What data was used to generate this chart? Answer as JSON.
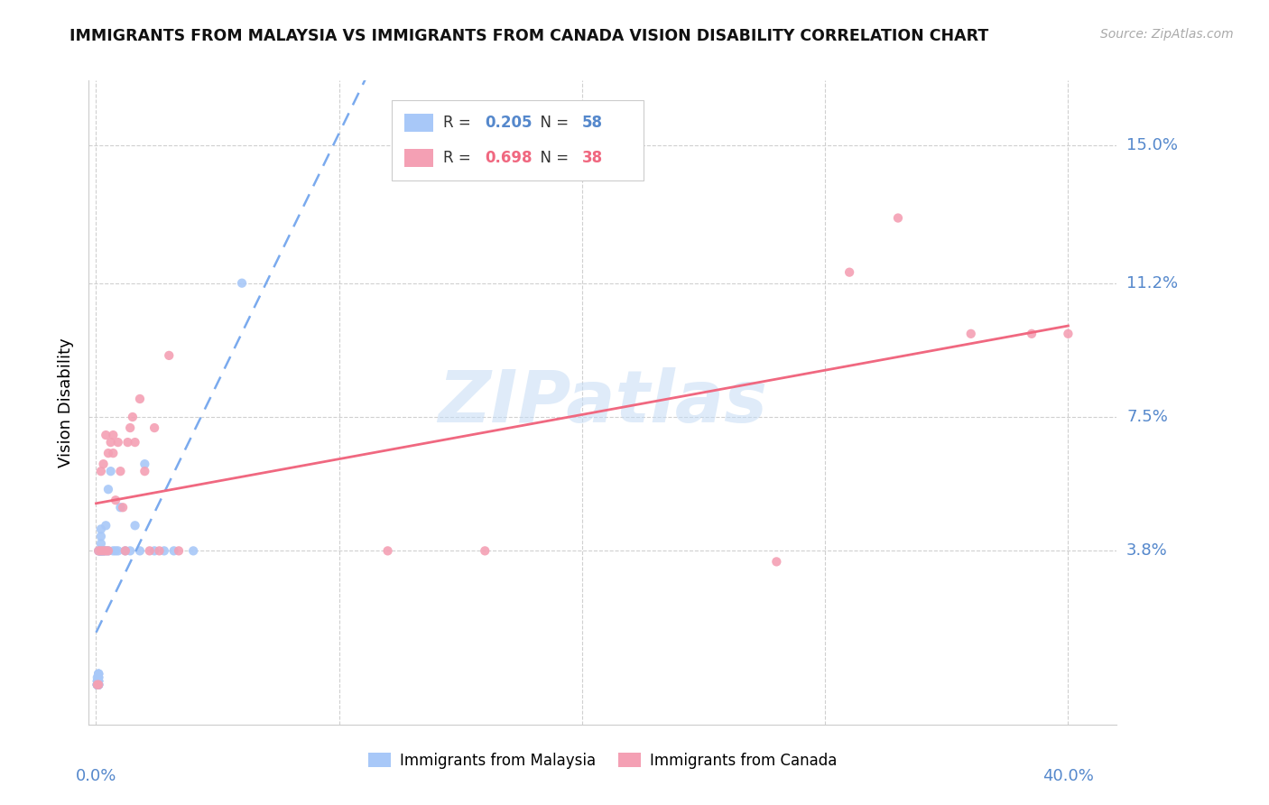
{
  "title": "IMMIGRANTS FROM MALAYSIA VS IMMIGRANTS FROM CANADA VISION DISABILITY CORRELATION CHART",
  "source": "Source: ZipAtlas.com",
  "ylabel": "Vision Disability",
  "ytick_labels": [
    "15.0%",
    "11.2%",
    "7.5%",
    "3.8%"
  ],
  "ytick_values": [
    0.15,
    0.112,
    0.075,
    0.038
  ],
  "xtick_labels": [
    "0.0%",
    "40.0%"
  ],
  "xtick_values": [
    0.0,
    0.4
  ],
  "xlim": [
    -0.003,
    0.42
  ],
  "ylim": [
    -0.01,
    0.168
  ],
  "legend1_label": "Immigrants from Malaysia",
  "legend2_label": "Immigrants from Canada",
  "R_malaysia": "0.205",
  "N_malaysia": "58",
  "R_canada": "0.698",
  "N_canada": "38",
  "malaysia_color": "#a8c8f8",
  "canada_color": "#f4a0b4",
  "malaysia_line_color": "#7aaaee",
  "canada_line_color": "#f06880",
  "watermark": "ZIPatlas",
  "malaysia_x": [
    0.0005,
    0.0005,
    0.0005,
    0.0005,
    0.0005,
    0.0005,
    0.0005,
    0.0005,
    0.0005,
    0.0008,
    0.0008,
    0.0008,
    0.0008,
    0.0008,
    0.001,
    0.001,
    0.001,
    0.001,
    0.001,
    0.001,
    0.001,
    0.001,
    0.001,
    0.001,
    0.001,
    0.001,
    0.001,
    0.001,
    0.0015,
    0.0015,
    0.002,
    0.002,
    0.002,
    0.002,
    0.002,
    0.002,
    0.003,
    0.003,
    0.003,
    0.004,
    0.004,
    0.005,
    0.005,
    0.006,
    0.007,
    0.008,
    0.009,
    0.01,
    0.012,
    0.014,
    0.016,
    0.018,
    0.02,
    0.024,
    0.028,
    0.032,
    0.04,
    0.06
  ],
  "malaysia_y": [
    0.001,
    0.001,
    0.001,
    0.001,
    0.001,
    0.001,
    0.002,
    0.002,
    0.003,
    0.001,
    0.001,
    0.001,
    0.002,
    0.002,
    0.001,
    0.001,
    0.001,
    0.001,
    0.002,
    0.002,
    0.002,
    0.003,
    0.003,
    0.003,
    0.004,
    0.004,
    0.004,
    0.038,
    0.038,
    0.038,
    0.038,
    0.038,
    0.038,
    0.04,
    0.042,
    0.044,
    0.038,
    0.038,
    0.038,
    0.038,
    0.045,
    0.038,
    0.055,
    0.06,
    0.038,
    0.038,
    0.038,
    0.05,
    0.038,
    0.038,
    0.045,
    0.038,
    0.062,
    0.038,
    0.038,
    0.038,
    0.038,
    0.112
  ],
  "canada_x": [
    0.0005,
    0.001,
    0.001,
    0.002,
    0.002,
    0.003,
    0.003,
    0.004,
    0.004,
    0.005,
    0.005,
    0.006,
    0.007,
    0.007,
    0.008,
    0.009,
    0.01,
    0.011,
    0.012,
    0.013,
    0.014,
    0.015,
    0.016,
    0.018,
    0.02,
    0.022,
    0.024,
    0.026,
    0.03,
    0.034,
    0.12,
    0.16,
    0.28,
    0.31,
    0.33,
    0.36,
    0.385,
    0.4
  ],
  "canada_y": [
    0.001,
    0.001,
    0.038,
    0.038,
    0.06,
    0.038,
    0.062,
    0.038,
    0.07,
    0.038,
    0.065,
    0.068,
    0.07,
    0.065,
    0.052,
    0.068,
    0.06,
    0.05,
    0.038,
    0.068,
    0.072,
    0.075,
    0.068,
    0.08,
    0.06,
    0.038,
    0.072,
    0.038,
    0.092,
    0.038,
    0.038,
    0.038,
    0.035,
    0.115,
    0.13,
    0.098,
    0.098,
    0.098
  ]
}
